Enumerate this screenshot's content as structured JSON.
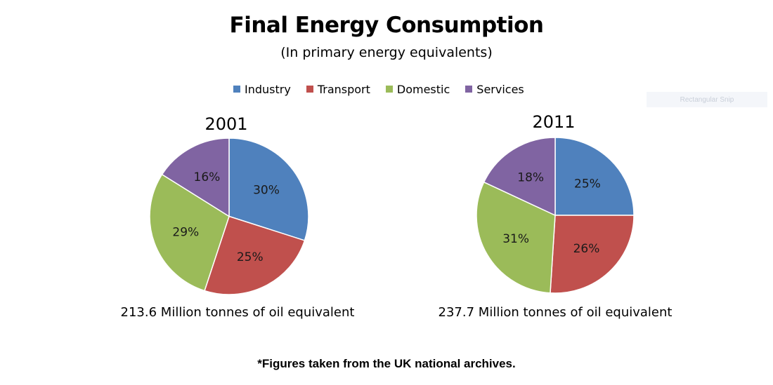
{
  "chart_data": {
    "type": "pie",
    "title": "Final Energy Consumption",
    "subtitle": "(In primary energy equivalents)",
    "legend": {
      "position": "top",
      "entries": [
        "Industry",
        "Transport",
        "Domestic",
        "Services"
      ]
    },
    "colors": [
      "#4f81bd",
      "#c0504d",
      "#9bbb59",
      "#8064a2"
    ],
    "categories": [
      "Industry",
      "Transport",
      "Domestic",
      "Services"
    ],
    "charts": [
      {
        "year": "2001",
        "values": [
          30,
          25,
          29,
          16
        ],
        "labels": [
          "30%",
          "25%",
          "29%",
          "16%"
        ],
        "total_text": "213.6  Million tonnes of oil equivalent"
      },
      {
        "year": "2011",
        "values": [
          25,
          26,
          31,
          18
        ],
        "labels": [
          "25%",
          "26%",
          "31%",
          "18%"
        ],
        "total_text": "237.7  Million tonnes of oil equivalent"
      }
    ],
    "footnote": "*Figures taken from the UK national archives."
  },
  "overlay": {
    "snip_label": "Rectangular Snip"
  }
}
